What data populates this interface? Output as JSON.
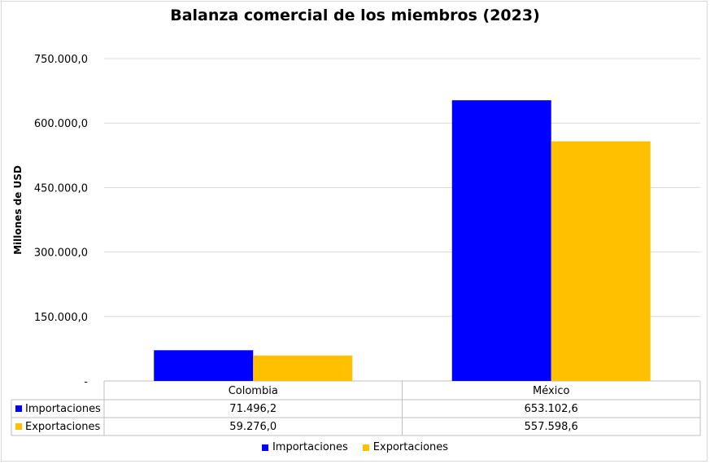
{
  "chart_data": {
    "type": "bar",
    "title": "Balanza comercial de los miembros (2023)",
    "ylabel": "Millones de USD",
    "xlabel": "",
    "ylim": [
      0,
      750000
    ],
    "yticks": [
      0,
      150000,
      300000,
      450000,
      600000,
      750000
    ],
    "ytick_labels": [
      "-",
      "150.000,0",
      "300.000,0",
      "450.000,0",
      "600.000,0",
      "750.000,0"
    ],
    "categories": [
      "Colombia",
      "México"
    ],
    "series": [
      {
        "name": "Importaciones",
        "values": [
          71496.2,
          653102.6
        ],
        "labels": [
          "71.496,2",
          "653.102,6"
        ],
        "color": "#0000ff"
      },
      {
        "name": "Exportaciones",
        "values": [
          59276.0,
          557598.6
        ],
        "labels": [
          "59.276,0",
          "557.598,6"
        ],
        "color": "#ffc000"
      }
    ],
    "grid": true,
    "legend": "bottom",
    "data_table": true
  }
}
